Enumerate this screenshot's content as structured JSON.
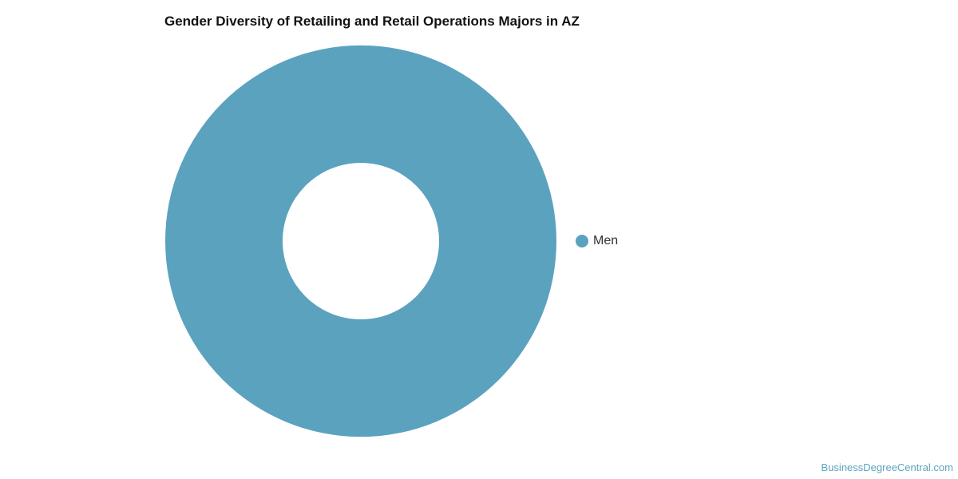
{
  "chart_data": {
    "type": "pie",
    "variant": "donut",
    "title": "Gender Diversity of Retailing and Retail Operations Majors in AZ",
    "slices": [
      {
        "name": "Men",
        "percent": 100,
        "color": "#5ba2bf"
      }
    ],
    "legend_placement": "right"
  },
  "credit": "BusinessDegreeCentral.com"
}
